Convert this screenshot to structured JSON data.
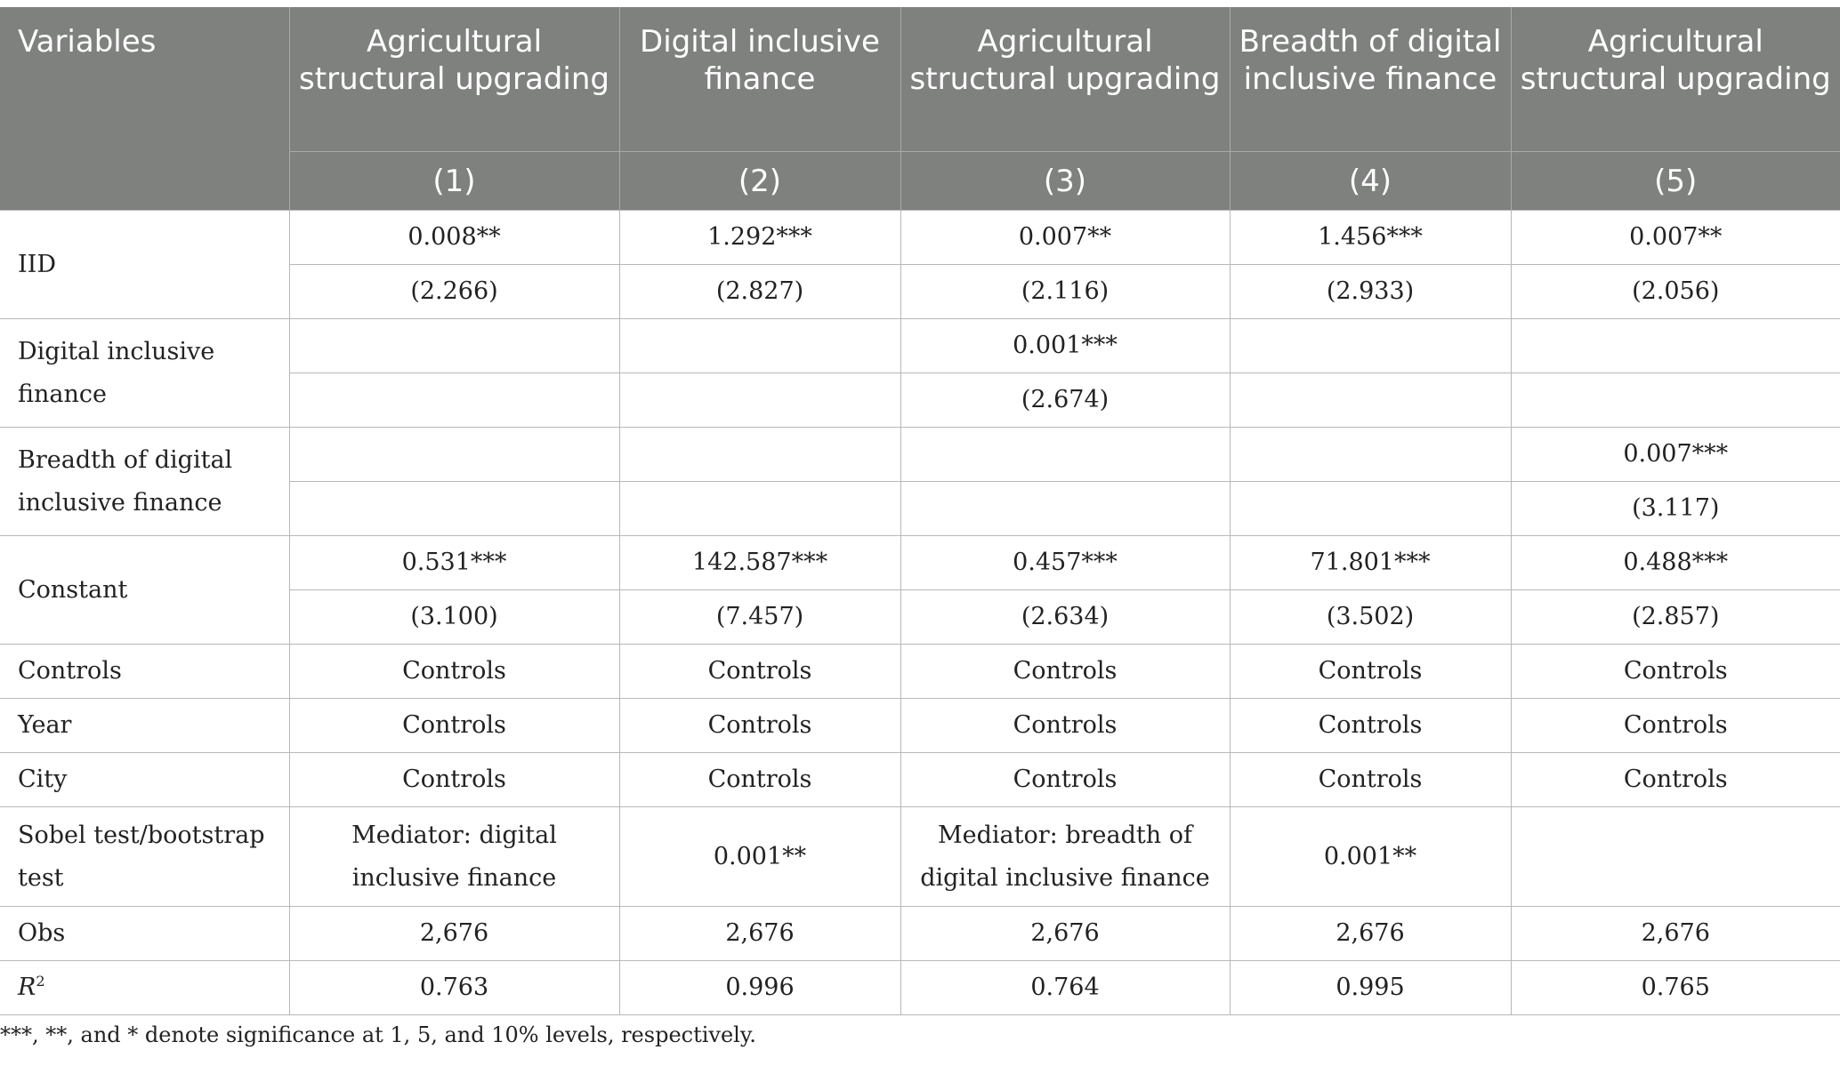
{
  "header": {
    "variables": "Variables",
    "columns": [
      {
        "name": "Agricultural structural upgrading",
        "num": "(1)"
      },
      {
        "name": "Digital inclusive finance",
        "num": "(2)"
      },
      {
        "name": "Agricultural structural upgrading",
        "num": "(3)"
      },
      {
        "name": "Breadth of digital inclusive finance",
        "num": "(4)"
      },
      {
        "name": "Agricultural structural upgrading",
        "num": "(5)"
      }
    ]
  },
  "rows": {
    "iid": {
      "label": "IID",
      "coef": [
        "0.008**",
        "1.292***",
        "0.007**",
        "1.456***",
        "0.007**"
      ],
      "t": [
        "(2.266)",
        "(2.827)",
        "(2.116)",
        "(2.933)",
        "(2.056)"
      ]
    },
    "dif": {
      "label": "Digital inclusive finance",
      "coef": [
        "",
        "",
        "0.001***",
        "",
        ""
      ],
      "t": [
        "",
        "",
        "(2.674)",
        "",
        ""
      ]
    },
    "bdif": {
      "label": "Breadth of digital inclusive finance",
      "coef": [
        "",
        "",
        "",
        "",
        "0.007***"
      ],
      "t": [
        "",
        "",
        "",
        "",
        "(3.117)"
      ]
    },
    "constant": {
      "label": "Constant",
      "coef": [
        "0.531***",
        "142.587***",
        "0.457***",
        "71.801***",
        "0.488***"
      ],
      "t": [
        "(3.100)",
        "(7.457)",
        "(2.634)",
        "(3.502)",
        "(2.857)"
      ]
    },
    "controls": {
      "label": "Controls",
      "values": [
        "Controls",
        "Controls",
        "Controls",
        "Controls",
        "Controls"
      ]
    },
    "year": {
      "label": "Year",
      "values": [
        "Controls",
        "Controls",
        "Controls",
        "Controls",
        "Controls"
      ]
    },
    "city": {
      "label": "City",
      "values": [
        "Controls",
        "Controls",
        "Controls",
        "Controls",
        "Controls"
      ]
    },
    "sobel": {
      "label": "Sobel test/bootstrap test",
      "values": [
        "Mediator: digital inclusive finance",
        "0.001**",
        "Mediator: breadth of digital inclusive finance",
        "0.001**",
        ""
      ]
    },
    "obs": {
      "label": "Obs",
      "values": [
        "2,676",
        "2,676",
        "2,676",
        "2,676",
        "2,676"
      ]
    },
    "r2": {
      "label": "R",
      "label_sup": "2",
      "values": [
        "0.763",
        "0.996",
        "0.764",
        "0.995",
        "0.765"
      ]
    }
  },
  "note": "***, **, and * denote significance at 1, 5, and 10% levels, respectively."
}
